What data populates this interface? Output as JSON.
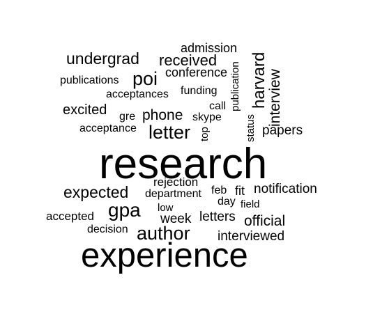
{
  "word_cloud": {
    "words": {
      "research": "research",
      "experience": "experience",
      "gpa": "gpa",
      "author": "author",
      "letter": "letter",
      "poi": "poi",
      "undergrad": "undergrad",
      "expected": "expected",
      "received": "received",
      "harvard": "harvard",
      "interview": "interview",
      "phone": "phone",
      "official": "official",
      "excited": "excited",
      "papers": "papers",
      "notification": "notification",
      "interviewed": "interviewed",
      "letters": "letters",
      "week": "week",
      "conference": "conference",
      "admission": "admission",
      "fit": "fit",
      "rejection": "rejection",
      "accepted": "accepted",
      "publications": "publications",
      "acceptances": "acceptances",
      "decision": "decision",
      "skype": "skype",
      "department": "department",
      "acceptance": "acceptance",
      "funding": "funding",
      "feb": "feb",
      "call": "call",
      "day": "day",
      "gre": "gre",
      "field": "field",
      "low": "low",
      "top": "top",
      "publication": "publication",
      "status": "status"
    },
    "text_color": "#000000",
    "background_color": "#ffffff"
  }
}
